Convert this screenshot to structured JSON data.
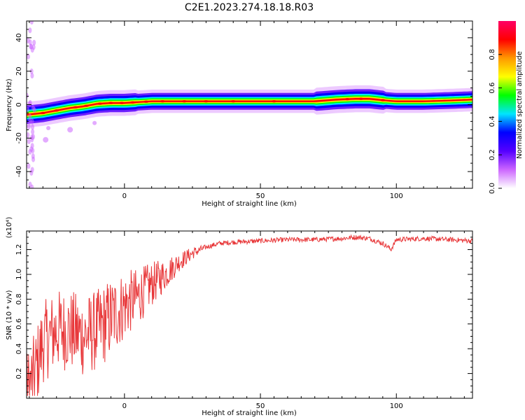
{
  "figure": {
    "title": "C2E1.2023.274.18.18.R03"
  },
  "chart_data": [
    {
      "type": "heatmap",
      "xlabel": "Height of straight line (km)",
      "ylabel": "Frequency (Hz)",
      "xlim": [
        -36,
        128
      ],
      "ylim": [
        -50,
        50
      ],
      "xticks": [
        0,
        50,
        100
      ],
      "yticks": [
        -40,
        -20,
        0,
        20,
        40
      ],
      "colorbar": {
        "label": "Normalized spectral amplitude",
        "range": [
          0,
          1
        ],
        "ticks": [
          "0.0",
          "0.2",
          "0.4",
          "0.6",
          "0.8"
        ],
        "stops": [
          "#ffffff",
          "#cc66ff",
          "#5500ff",
          "#0000ff",
          "#00e5ff",
          "#00ff00",
          "#ffff00",
          "#ff9900",
          "#ff0000",
          "#ff0066"
        ]
      },
      "ridge": {
        "x": [
          -36,
          -30,
          -25,
          -20,
          -15,
          -10,
          -5,
          0,
          5,
          10,
          20,
          30,
          40,
          50,
          60,
          70,
          78,
          85,
          90,
          93,
          96,
          100,
          110,
          120,
          128
        ],
        "y": [
          -6,
          -5,
          -3.5,
          -2,
          -1,
          0.5,
          1,
          1,
          1.5,
          2,
          2,
          2,
          2,
          2,
          2,
          2,
          3,
          3.5,
          3.5,
          3,
          2.5,
          2,
          2,
          2.5,
          3
        ]
      }
    },
    {
      "type": "line",
      "xlabel": "Height of straight line (km)",
      "ylabel": "SNR (10 * v/v)",
      "yscale_note": "(x10⁴)",
      "xlim": [
        -36,
        128
      ],
      "ylim": [
        0,
        1.35
      ],
      "xticks": [
        0,
        50,
        100
      ],
      "yticks": [
        0.2,
        0.4,
        0.6,
        0.8,
        1.0,
        1.2
      ],
      "color": "#e8383a",
      "trend": {
        "x": [
          -36,
          -33,
          -30,
          -25,
          -20,
          -15,
          -10,
          -5,
          0,
          5,
          10,
          15,
          20,
          25,
          30,
          35,
          40,
          50,
          60,
          70,
          80,
          85,
          90,
          95,
          97,
          98,
          100,
          110,
          120,
          128
        ],
        "y": [
          0.05,
          0.2,
          0.45,
          0.55,
          0.55,
          0.5,
          0.55,
          0.65,
          0.75,
          0.82,
          0.92,
          1.0,
          1.1,
          1.17,
          1.22,
          1.25,
          1.26,
          1.27,
          1.28,
          1.28,
          1.29,
          1.3,
          1.29,
          1.25,
          1.22,
          1.2,
          1.28,
          1.29,
          1.28,
          1.27
        ]
      }
    }
  ]
}
